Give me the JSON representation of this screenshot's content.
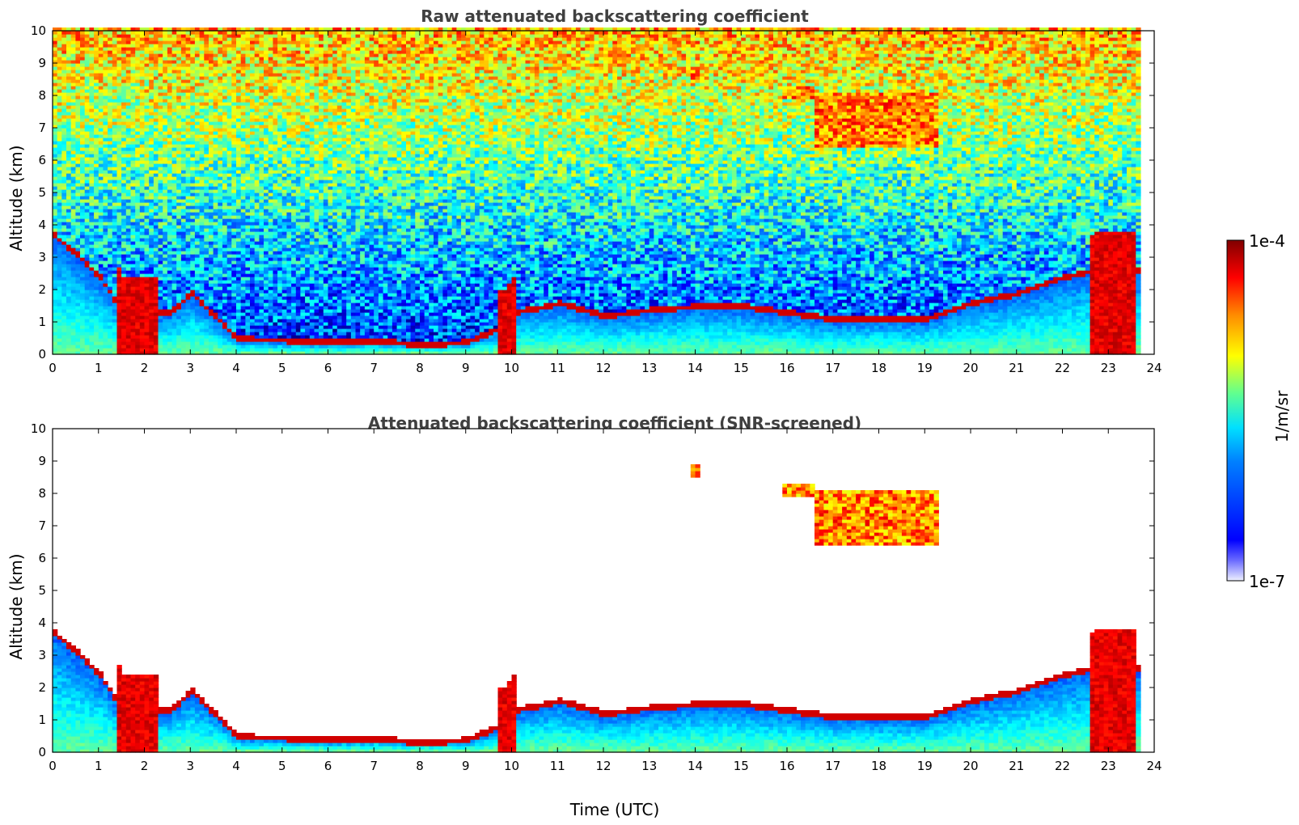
{
  "chart_data": [
    {
      "type": "heatmap",
      "title": "Raw attenuated backscattering coefficient",
      "xlabel": "",
      "ylabel": "Altitude (km)",
      "xlim": [
        0,
        24
      ],
      "ylim": [
        0,
        10
      ],
      "xticks": [
        "0",
        "1",
        "2",
        "3",
        "4",
        "5",
        "6",
        "7",
        "8",
        "9",
        "10",
        "11",
        "12",
        "13",
        "14",
        "15",
        "16",
        "17",
        "18",
        "19",
        "20",
        "21",
        "22",
        "23",
        "24"
      ],
      "yticks": [
        "0",
        "1",
        "2",
        "3",
        "4",
        "5",
        "6",
        "7",
        "8",
        "9",
        "10"
      ],
      "features": {
        "boundary_layer_top_km": [
          [
            0,
            3.6
          ],
          [
            0.5,
            3.0
          ],
          [
            1,
            2.3
          ],
          [
            1.5,
            1.2
          ],
          [
            2.5,
            1.2
          ],
          [
            3,
            1.8
          ],
          [
            4,
            0.4
          ],
          [
            5,
            0.35
          ],
          [
            6,
            0.3
          ],
          [
            7,
            0.35
          ],
          [
            8,
            0.2
          ],
          [
            9,
            0.3
          ],
          [
            9.8,
            0.8
          ],
          [
            10,
            1.2
          ],
          [
            11,
            1.5
          ],
          [
            12,
            1.1
          ],
          [
            13,
            1.3
          ],
          [
            14,
            1.4
          ],
          [
            15,
            1.4
          ],
          [
            16,
            1.2
          ],
          [
            17,
            1.0
          ],
          [
            18,
            1.0
          ],
          [
            19,
            1.0
          ],
          [
            20,
            1.5
          ],
          [
            21,
            1.8
          ],
          [
            22,
            2.3
          ],
          [
            23,
            2.6
          ],
          [
            23.7,
            2.5
          ]
        ],
        "rain_columns_utc": [
          [
            1.4,
            2.3
          ],
          [
            9.6,
            10.0
          ],
          [
            22.6,
            23.6
          ]
        ],
        "cirrus_layers": [
          {
            "time": [
              15.8,
              16.5
            ],
            "altitude_km": [
              7.8,
              8.2
            ]
          },
          {
            "time": [
              16.5,
              19.3
            ],
            "altitude_km": [
              6.3,
              8.0
            ]
          },
          {
            "time": [
              13.8,
              14.0
            ],
            "altitude_km": [
              8.4,
              8.8
            ]
          }
        ],
        "data_end_utc": 23.7,
        "noise_saturated_above_km": 3.5
      }
    },
    {
      "type": "heatmap",
      "title": "Attenuated backscattering coefficient (SNR-screened)",
      "xlabel": "Time (UTC)",
      "ylabel": "Altitude (km)",
      "xlim": [
        0,
        24
      ],
      "ylim": [
        0,
        10
      ],
      "xticks": [
        "0",
        "1",
        "2",
        "3",
        "4",
        "5",
        "6",
        "7",
        "8",
        "9",
        "10",
        "11",
        "12",
        "13",
        "14",
        "15",
        "16",
        "17",
        "18",
        "19",
        "20",
        "21",
        "22",
        "23",
        "24"
      ],
      "yticks": [
        "0",
        "1",
        "2",
        "3",
        "4",
        "5",
        "6",
        "7",
        "8",
        "9",
        "10"
      ]
    }
  ],
  "colorbar": {
    "label": "1/m/sr",
    "max_label": "1e-4",
    "min_label": "1e-7",
    "scale": "log",
    "range": [
      1e-07,
      0.0001
    ],
    "colormap": "jet",
    "colors": [
      "#eeeeff",
      "#0000ff",
      "#00ffff",
      "#ffff00",
      "#ff0000",
      "#7f0000"
    ]
  }
}
